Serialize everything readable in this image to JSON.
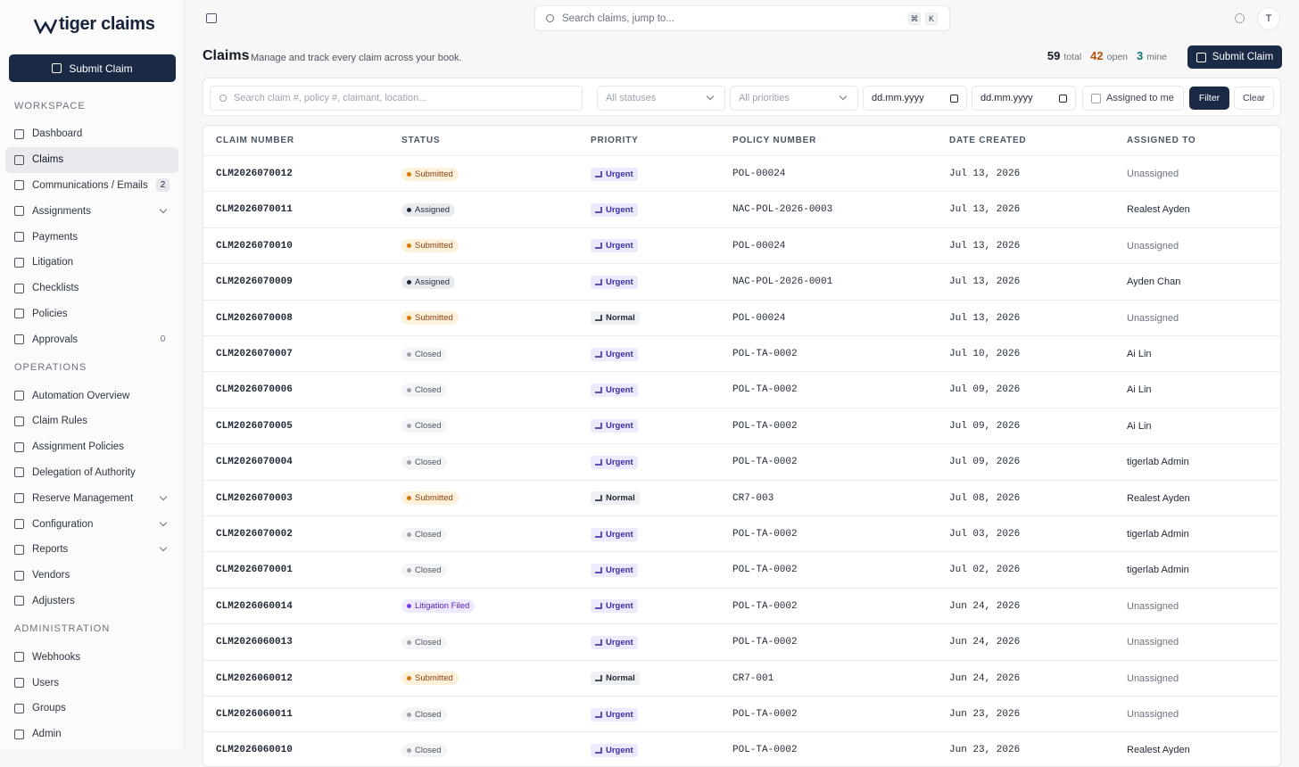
{
  "brand": "tiger claims",
  "sidebar": {
    "submit_button": "Submit Claim",
    "sections": [
      {
        "title": "WORKSPACE",
        "items": [
          {
            "label": "Dashboard"
          },
          {
            "label": "Claims",
            "active": true
          },
          {
            "label": "Communications / Emails",
            "badge": 2
          },
          {
            "label": "Assignments",
            "expandable": true
          },
          {
            "label": "Payments"
          },
          {
            "label": "Litigation"
          },
          {
            "label": "Checklists"
          },
          {
            "label": "Policies"
          },
          {
            "label": "Approvals",
            "badge": 0
          }
        ]
      },
      {
        "title": "OPERATIONS",
        "items": [
          {
            "label": "Automation Overview"
          },
          {
            "label": "Claim Rules"
          },
          {
            "label": "Assignment Policies"
          },
          {
            "label": "Delegation of Authority"
          },
          {
            "label": "Reserve Management",
            "expandable": true
          },
          {
            "label": "Configuration",
            "expandable": true
          },
          {
            "label": "Reports",
            "expandable": true
          },
          {
            "label": "Vendors"
          },
          {
            "label": "Adjusters"
          }
        ]
      },
      {
        "title": "ADMINISTRATION",
        "items": [
          {
            "label": "Webhooks"
          },
          {
            "label": "Users"
          },
          {
            "label": "Groups"
          },
          {
            "label": "Admin"
          }
        ]
      }
    ]
  },
  "topbar": {
    "search_placeholder": "Search claims, jump to...",
    "shortcut": [
      "⌘",
      "K"
    ],
    "avatar": "T"
  },
  "header": {
    "title": "Claims",
    "subtitle": "Manage and track every claim across your book.",
    "stats": [
      {
        "value": 59,
        "label": "total"
      },
      {
        "value": 42,
        "label": "open"
      },
      {
        "value": 3,
        "label": "mine"
      }
    ],
    "submit_button": "Submit Claim"
  },
  "filters": {
    "search_placeholder": "Search claim #, policy #, claimant, location...",
    "status": "All statuses",
    "priority": "All priorities",
    "date_from": "dd.mm.yyyy",
    "date_to": "dd.mm.yyyy",
    "assigned_to_me": "Assigned to me",
    "filter_button": "Filter",
    "clear_button": "Clear"
  },
  "table": {
    "columns": [
      "CLAIM NUMBER",
      "STATUS",
      "PRIORITY",
      "POLICY NUMBER",
      "DATE CREATED",
      "ASSIGNED TO"
    ],
    "rows": [
      [
        "CLM2026070012",
        "Submitted",
        "Urgent",
        "POL-00024",
        "Jul 13, 2026",
        "Unassigned"
      ],
      [
        "CLM2026070011",
        "Assigned",
        "Urgent",
        "NAC-POL-2026-0003",
        "Jul 13, 2026",
        "Realest Ayden"
      ],
      [
        "CLM2026070010",
        "Submitted",
        "Urgent",
        "POL-00024",
        "Jul 13, 2026",
        "Unassigned"
      ],
      [
        "CLM2026070009",
        "Assigned",
        "Urgent",
        "NAC-POL-2026-0001",
        "Jul 13, 2026",
        "Ayden Chan"
      ],
      [
        "CLM2026070008",
        "Submitted",
        "Normal",
        "POL-00024",
        "Jul 13, 2026",
        "Unassigned"
      ],
      [
        "CLM2026070007",
        "Closed",
        "Urgent",
        "POL-TA-0002",
        "Jul 10, 2026",
        "Ai Lin"
      ],
      [
        "CLM2026070006",
        "Closed",
        "Urgent",
        "POL-TA-0002",
        "Jul 09, 2026",
        "Ai Lin"
      ],
      [
        "CLM2026070005",
        "Closed",
        "Urgent",
        "POL-TA-0002",
        "Jul 09, 2026",
        "Ai Lin"
      ],
      [
        "CLM2026070004",
        "Closed",
        "Urgent",
        "POL-TA-0002",
        "Jul 09, 2026",
        "tigerlab Admin"
      ],
      [
        "CLM2026070003",
        "Submitted",
        "Normal",
        "CR7-003",
        "Jul 08, 2026",
        "Realest Ayden"
      ],
      [
        "CLM2026070002",
        "Closed",
        "Urgent",
        "POL-TA-0002",
        "Jul 03, 2026",
        "tigerlab Admin"
      ],
      [
        "CLM2026070001",
        "Closed",
        "Urgent",
        "POL-TA-0002",
        "Jul 02, 2026",
        "tigerlab Admin"
      ],
      [
        "CLM2026060014",
        "Litigation Filed",
        "Urgent",
        "POL-TA-0002",
        "Jun 24, 2026",
        "Unassigned"
      ],
      [
        "CLM2026060013",
        "Closed",
        "Urgent",
        "POL-TA-0002",
        "Jun 24, 2026",
        "Unassigned"
      ],
      [
        "CLM2026060012",
        "Submitted",
        "Normal",
        "CR7-001",
        "Jun 24, 2026",
        "Unassigned"
      ],
      [
        "CLM2026060011",
        "Closed",
        "Urgent",
        "POL-TA-0002",
        "Jun 23, 2026",
        "Unassigned"
      ],
      [
        "CLM2026060010",
        "Closed",
        "Urgent",
        "POL-TA-0002",
        "Jun 23, 2026",
        "Realest Ayden"
      ]
    ]
  }
}
